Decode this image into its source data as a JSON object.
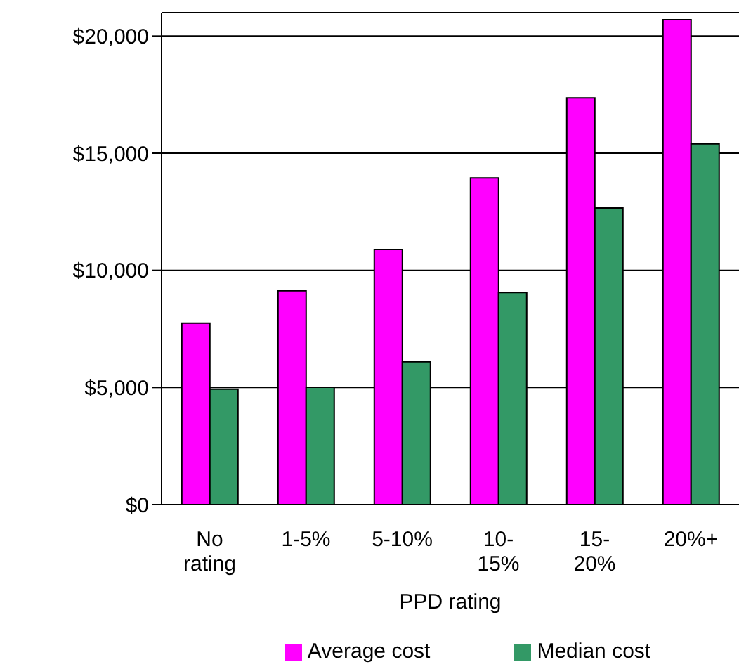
{
  "chart_data": {
    "type": "bar",
    "xlabel": "PPD rating",
    "categories": [
      "No rating",
      "1-5%",
      "5-10%",
      "10-15%",
      "15-20%",
      "20%+"
    ],
    "series": [
      {
        "name": "Average cost",
        "color": "#ff00ff",
        "values": [
          7750,
          9130,
          10890,
          13940,
          17360,
          20700
        ]
      },
      {
        "name": "Median cost",
        "color": "#339966",
        "values": [
          4930,
          5010,
          6100,
          9050,
          12660,
          15400
        ]
      }
    ],
    "ylim": [
      0,
      21000
    ],
    "yticks": [
      {
        "value": 0,
        "label": "$0"
      },
      {
        "value": 5000,
        "label": "$5,000"
      },
      {
        "value": 10000,
        "label": "$10,000"
      },
      {
        "value": 15000,
        "label": "$15,000"
      },
      {
        "value": 20000,
        "label": "$20,000"
      }
    ],
    "grid": "y",
    "legend": "bottom"
  }
}
